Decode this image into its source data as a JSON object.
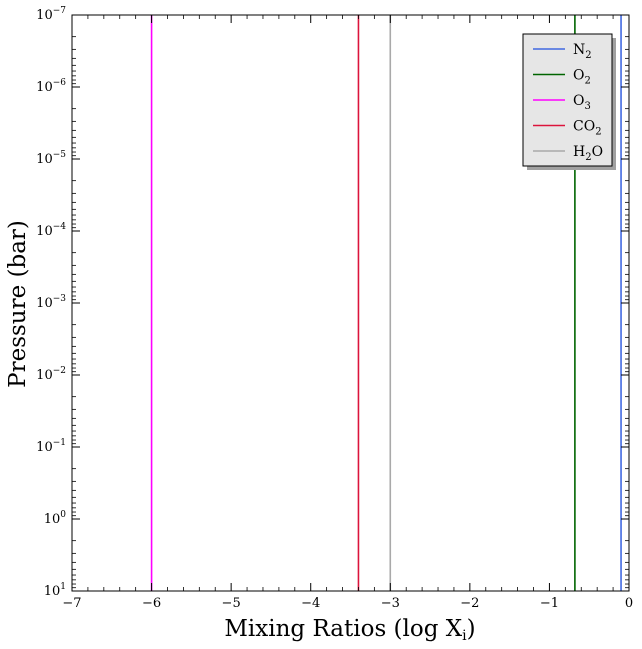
{
  "chart_data": {
    "type": "line",
    "xlabel": "Mixing Ratios (log X",
    "xlabel_sub": "i",
    "xlabel_close": ")",
    "ylabel": "Pressure (bar)",
    "xlim": [
      -7,
      0
    ],
    "ylim": [
      1e-07,
      10
    ],
    "yscale": "log",
    "y_inverted": true,
    "x_ticks": [
      {
        "value": -7,
        "label": "−7"
      },
      {
        "value": -6,
        "label": "−6"
      },
      {
        "value": -5,
        "label": "−5"
      },
      {
        "value": -4,
        "label": "−4"
      },
      {
        "value": -3,
        "label": "−3"
      },
      {
        "value": -2,
        "label": "−2"
      },
      {
        "value": -1,
        "label": "−1"
      },
      {
        "value": 0,
        "label": "0"
      }
    ],
    "y_ticks": [
      {
        "exp": -7,
        "base": "10",
        "sup": "−7"
      },
      {
        "exp": -6,
        "base": "10",
        "sup": "−6"
      },
      {
        "exp": -5,
        "base": "10",
        "sup": "−5"
      },
      {
        "exp": -4,
        "base": "10",
        "sup": "−4"
      },
      {
        "exp": -3,
        "base": "10",
        "sup": "−3"
      },
      {
        "exp": -2,
        "base": "10",
        "sup": "−2"
      },
      {
        "exp": -1,
        "base": "10",
        "sup": "−1"
      },
      {
        "exp": 0,
        "base": "10",
        "sup": "0"
      },
      {
        "exp": 1,
        "base": "10",
        "sup": "1"
      }
    ],
    "legend_position": "top-right",
    "series": [
      {
        "name": "N",
        "sub": "2",
        "tail": "",
        "x": [
          -0.1,
          -0.1
        ],
        "y": [
          1e-07,
          10
        ],
        "color": "#4169e1"
      },
      {
        "name": "O",
        "sub": "2",
        "tail": "",
        "x": [
          -0.68,
          -0.68
        ],
        "y": [
          1e-07,
          10
        ],
        "color": "#006400"
      },
      {
        "name": "O",
        "sub": "3",
        "tail": "",
        "x": [
          -6.0,
          -6.0
        ],
        "y": [
          1e-07,
          10
        ],
        "color": "#ff00ff"
      },
      {
        "name": "CO",
        "sub": "2",
        "tail": "",
        "x": [
          -3.4,
          -3.4
        ],
        "y": [
          1e-07,
          10
        ],
        "color": "#dc143c"
      },
      {
        "name": "H",
        "sub": "2",
        "tail": "O",
        "x": [
          -3.0,
          -3.0
        ],
        "y": [
          1e-07,
          10
        ],
        "color": "#a9a9a9"
      }
    ]
  }
}
